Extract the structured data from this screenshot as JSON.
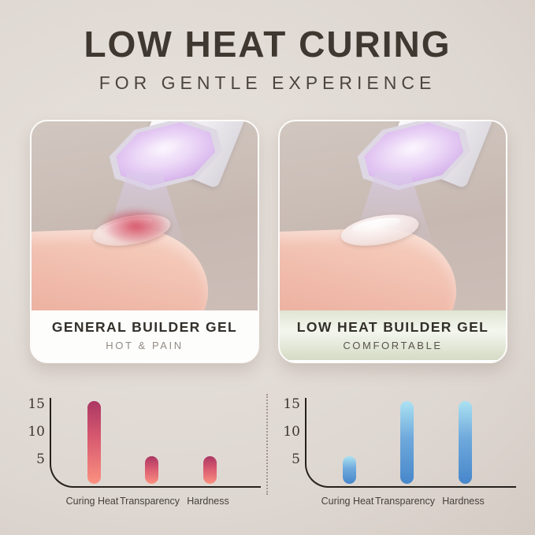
{
  "header": {
    "title": "LOW HEAT CURING",
    "subtitle": "FOR GENTLE EXPERIENCE"
  },
  "panels": [
    {
      "label": "GENERAL BUILDER GEL",
      "sublabel": "HOT & PAIN",
      "caption_style": "white"
    },
    {
      "label": "LOW HEAT BUILDER GEL",
      "sublabel": "COMFORTABLE",
      "caption_style": "green"
    }
  ],
  "icons": [
    {
      "name": "uv-lamp-head-icon",
      "shape": "octagon-uv-lamp-face"
    },
    {
      "name": "heat-pain-glow",
      "meaning": "red hot spot on nail (left photo only)"
    }
  ],
  "colors": {
    "background_light": "#e9e3dd",
    "background_dark": "#c2b7af",
    "title_text": "#3e3831",
    "caption_green_top": "#e0e5d3",
    "axis": "#26211c",
    "lamp_glow": "#e2c6f2",
    "heat_glow": "#cc2842",
    "red_bar_top": "#ab3763",
    "red_bar_bottom": "#fb9180",
    "blue_bar_top": "#abe2f2",
    "blue_bar_bottom": "#4787cb"
  },
  "chart_data": [
    {
      "type": "bar",
      "title": "GENERAL BUILDER GEL",
      "categories": [
        "Curing Heat",
        "Transparency",
        "Hardness"
      ],
      "values": [
        15,
        5,
        5
      ],
      "yticks": [
        5,
        10,
        15
      ],
      "ylim": [
        0,
        16
      ],
      "xlabel": "",
      "ylabel": "",
      "grid": false,
      "legend": "none",
      "bar_gradient": [
        "#ab3763",
        "#d85a70",
        "#fb9180"
      ]
    },
    {
      "type": "bar",
      "title": "LOW HEAT BUILDER GEL",
      "categories": [
        "Curing Heat",
        "Transparency",
        "Hardness"
      ],
      "values": [
        5,
        15,
        15
      ],
      "yticks": [
        5,
        10,
        15
      ],
      "ylim": [
        0,
        16
      ],
      "xlabel": "",
      "ylabel": "",
      "grid": false,
      "legend": "none",
      "bar_gradient": [
        "#abe2f2",
        "#6fa9dc",
        "#4787cb"
      ]
    }
  ]
}
